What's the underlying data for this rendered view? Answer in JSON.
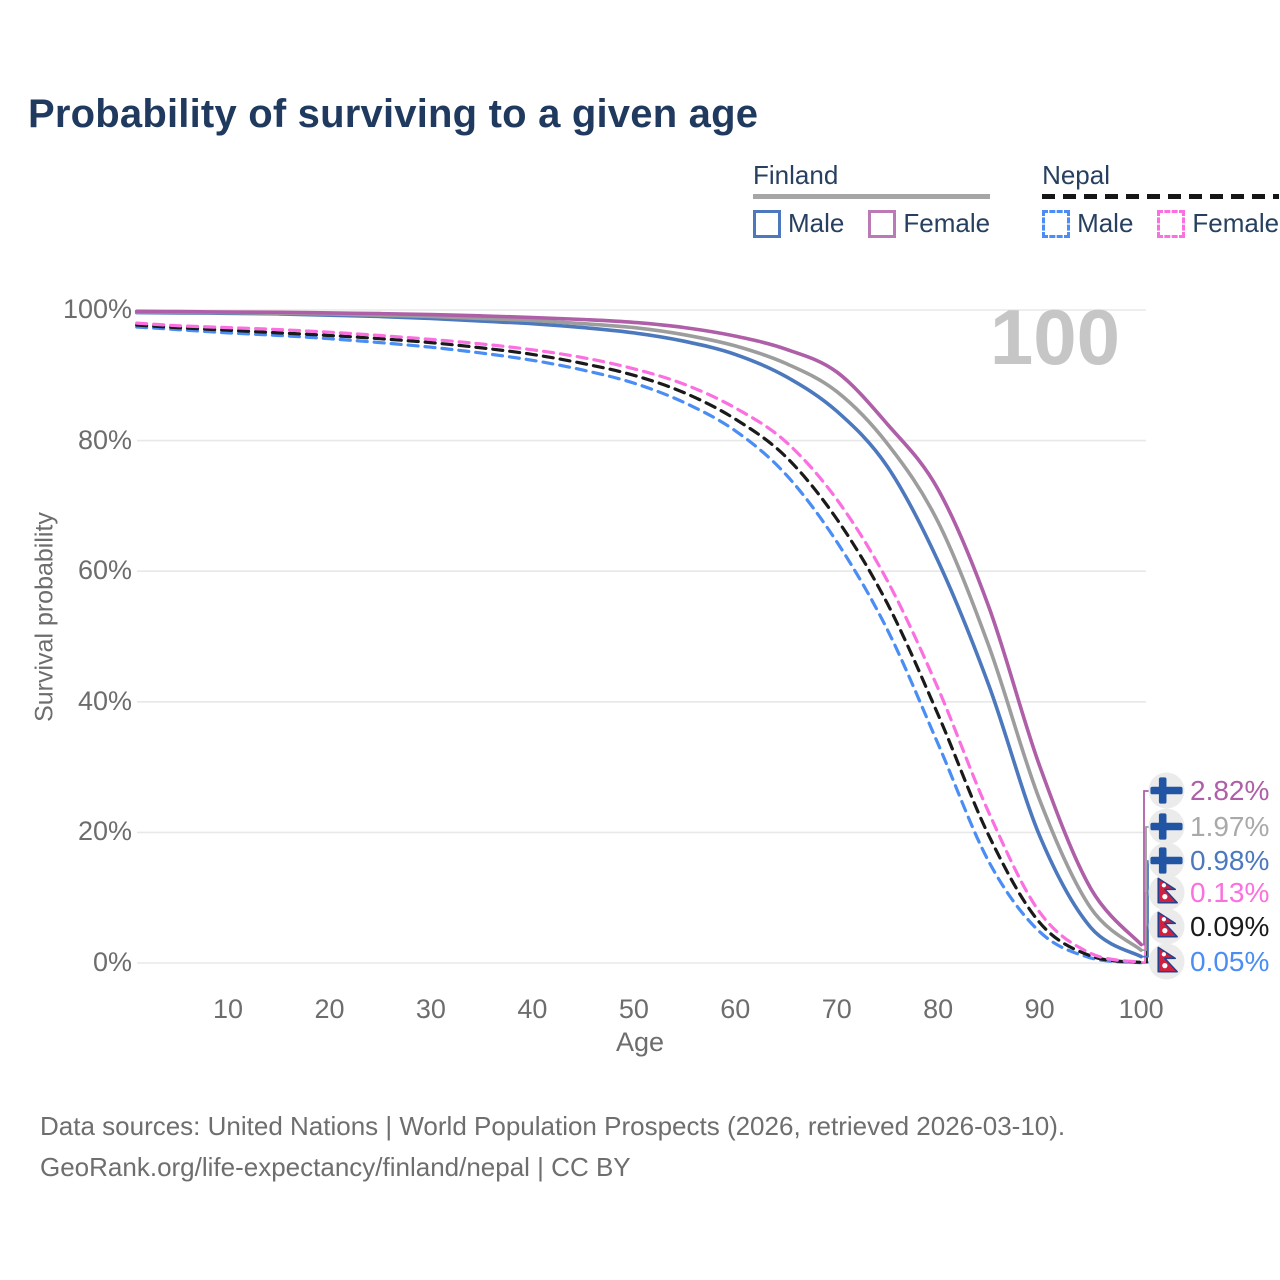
{
  "title": "Probability of surviving to a given age",
  "legend": {
    "groups": [
      {
        "country": "Finland",
        "line_style": "solid",
        "underline_color": "#a6a6a6",
        "items": [
          {
            "label": "Male",
            "color": "#4c79bd",
            "dash": false
          },
          {
            "label": "Female",
            "color": "#bb79b5",
            "dash": false
          }
        ]
      },
      {
        "country": "Nepal",
        "line_style": "dashed",
        "underline_color": "#161616",
        "items": [
          {
            "label": "Male",
            "color": "#4a8df5",
            "dash": true
          },
          {
            "label": "Female",
            "color": "#fb70e0",
            "dash": true
          }
        ]
      }
    ]
  },
  "chart_data": {
    "type": "line",
    "title": "Probability of surviving to a given age",
    "xlabel": "Age",
    "ylabel": "Survival probability",
    "x_ticks": [
      "10",
      "20",
      "30",
      "40",
      "50",
      "60",
      "70",
      "80",
      "90",
      "100"
    ],
    "y_ticks": [
      "100%",
      "80%",
      "60%",
      "40%",
      "20%",
      "0%"
    ],
    "xlim": [
      1,
      100
    ],
    "ylim": [
      0,
      100
    ],
    "grid": "horizontal",
    "age_annotation": "100",
    "ages": [
      1,
      5,
      10,
      15,
      20,
      25,
      30,
      35,
      40,
      45,
      50,
      55,
      60,
      65,
      70,
      75,
      80,
      85,
      90,
      95,
      100
    ],
    "series": [
      {
        "id": "nepal-male",
        "country": "Nepal",
        "sex": "Male",
        "color": "#4a8df5",
        "dash": true,
        "end_label": "0.05%",
        "values": [
          97.4,
          97.0,
          96.5,
          96.1,
          95.6,
          95.0,
          94.3,
          93.4,
          92.3,
          90.8,
          88.8,
          85.8,
          81.5,
          74.8,
          64.5,
          51.0,
          33.5,
          15.5,
          4.8,
          0.8,
          0.05
        ]
      },
      {
        "id": "nepal-both",
        "country": "Nepal",
        "sex": "Both sexes",
        "color": "#1a1a1a",
        "dash": true,
        "end_label": "0.09%",
        "values": [
          97.7,
          97.3,
          96.9,
          96.5,
          96.1,
          95.6,
          95.0,
          94.2,
          93.2,
          91.8,
          90.0,
          87.3,
          83.3,
          77.5,
          68.0,
          55.0,
          38.0,
          19.5,
          6.2,
          1.1,
          0.09
        ]
      },
      {
        "id": "nepal-female",
        "country": "Nepal",
        "sex": "Female",
        "color": "#fb70e0",
        "dash": true,
        "end_label": "0.13%",
        "values": [
          98.0,
          97.6,
          97.3,
          97.0,
          96.6,
          96.1,
          95.5,
          94.8,
          93.9,
          92.7,
          91.0,
          88.6,
          85.0,
          79.8,
          71.0,
          58.5,
          42.0,
          23.0,
          7.8,
          1.5,
          0.13
        ]
      },
      {
        "id": "finland-male",
        "country": "Finland",
        "sex": "Male",
        "color": "#4c79bd",
        "dash": false,
        "end_label": "0.98%",
        "values": [
          99.6,
          99.55,
          99.5,
          99.4,
          99.2,
          99.0,
          98.7,
          98.3,
          97.9,
          97.3,
          96.5,
          95.2,
          93.2,
          89.8,
          84.5,
          76.0,
          61.5,
          42.5,
          19.5,
          5.5,
          0.98
        ]
      },
      {
        "id": "finland-both",
        "country": "Finland",
        "sex": "Both sexes",
        "color": "#9d9d9d",
        "dash": false,
        "end_label": "1.97%",
        "values": [
          99.7,
          99.65,
          99.6,
          99.5,
          99.4,
          99.2,
          99.0,
          98.7,
          98.4,
          97.9,
          97.3,
          96.2,
          94.5,
          91.8,
          87.5,
          79.5,
          67.5,
          48.5,
          25.0,
          8.5,
          1.97
        ]
      },
      {
        "id": "finland-female",
        "country": "Finland",
        "sex": "Female",
        "color": "#ae5fa7",
        "dash": false,
        "end_label": "2.82%",
        "values": [
          99.8,
          99.75,
          99.7,
          99.65,
          99.55,
          99.45,
          99.3,
          99.1,
          98.85,
          98.55,
          98.1,
          97.3,
          96.0,
          94.0,
          90.5,
          82.5,
          72.5,
          54.5,
          30.2,
          11.5,
          2.82
        ]
      }
    ]
  },
  "end_labels": [
    {
      "flag": "finland",
      "series": "finland-female",
      "text": "2.82%",
      "color": "#ae5fa7"
    },
    {
      "flag": "finland",
      "series": "finland-both",
      "text": "1.97%",
      "color": "#a9a9a9"
    },
    {
      "flag": "finland",
      "series": "finland-male",
      "text": "0.98%",
      "color": "#4c79bd"
    },
    {
      "flag": "nepal",
      "series": "nepal-female",
      "text": "0.13%",
      "color": "#fb70e0"
    },
    {
      "flag": "nepal",
      "series": "nepal-both",
      "text": "0.09%",
      "color": "#1a1a1a"
    },
    {
      "flag": "nepal",
      "series": "nepal-male",
      "text": "0.05%",
      "color": "#4a8df5"
    }
  ],
  "footer": {
    "line1": "Data sources: United Nations | World Population Prospects (2026, retrieved 2026-03-10).",
    "line2": "GeoRank.org/life-expectancy/finland/nepal | CC BY"
  }
}
